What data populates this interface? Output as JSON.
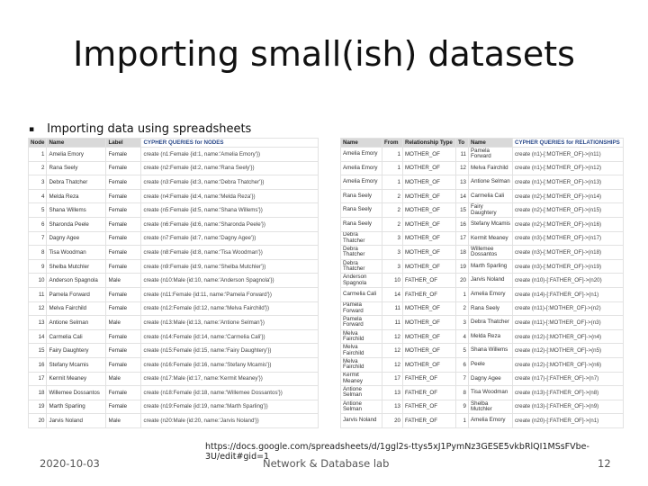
{
  "slide": {
    "title": "Importing small(ish) datasets",
    "bullet": "Importing data using spreadsheets",
    "url": "https://docs.google.com/spreadsheets/d/1ggl2s-ttys5xJ1PymNz3GESE5vkbRlQI1MSsFVbe-3U/edit#gid=1",
    "footer": {
      "date": "2020-10-03",
      "org": "Network & Database lab",
      "page": "12"
    }
  },
  "nodes_sheet": {
    "headers": [
      "Node",
      "Name",
      "Label",
      "CYPHER QUERIES for NODES"
    ],
    "rows": [
      [
        "1",
        "Amelia Emory",
        "Female",
        "create (n1:Female {id:1, name:'Amelia Emory'})"
      ],
      [
        "2",
        "Rana Seely",
        "Female",
        "create (n2:Female {id:2, name:'Rana Seely'})"
      ],
      [
        "3",
        "Debra Thatcher",
        "Female",
        "create (n3:Female {id:3, name:'Debra Thatcher'})"
      ],
      [
        "4",
        "Melda Reza",
        "Female",
        "create (n4:Female {id:4, name:'Melda Reza'})"
      ],
      [
        "5",
        "Shana Willems",
        "Female",
        "create (n5:Female {id:5, name:'Shana Willems'})"
      ],
      [
        "6",
        "Sharonda Peele",
        "Female",
        "create (n6:Female {id:6, name:'Sharonda Peele'})"
      ],
      [
        "7",
        "Dagny Agee",
        "Female",
        "create (n7:Female {id:7, name:'Dagny Agee'})"
      ],
      [
        "8",
        "Tisa Woodman",
        "Female",
        "create (n8:Female {id:8, name:'Tisa Woodman'})"
      ],
      [
        "9",
        "Shelba Mutchler",
        "Female",
        "create (n9:Female {id:9, name:'Shelba Mutchler'})"
      ],
      [
        "10",
        "Anderson Spagnola",
        "Male",
        "create (n10:Male {id:10, name:'Anderson Spagnola'})"
      ],
      [
        "11",
        "Pamela Forward",
        "Female",
        "create (n11:Female {id:11, name:'Pamela Forward'})"
      ],
      [
        "12",
        "Melva Fairchild",
        "Female",
        "create (n12:Female {id:12, name:'Melva Fairchild'})"
      ],
      [
        "13",
        "Antione Selman",
        "Male",
        "create (n13:Male {id:13, name:'Antione Selman'})"
      ],
      [
        "14",
        "Carmelia Cali",
        "Female",
        "create (n14:Female {id:14, name:'Carmelia Cali'})"
      ],
      [
        "15",
        "Fairy Daughtery",
        "Female",
        "create (n15:Female {id:15, name:'Fairy Daughtery'})"
      ],
      [
        "16",
        "Stefany Mcamis",
        "Female",
        "create (n16:Female {id:16, name:'Stefany Mcamis'})"
      ],
      [
        "17",
        "Kermit Meaney",
        "Male",
        "create (n17:Male {id:17, name:'Kermit Meaney'})"
      ],
      [
        "18",
        "Willemee Dossantos",
        "Female",
        "create (n18:Female {id:18, name:'Willemee Dossantos'})"
      ],
      [
        "19",
        "Marth Sparling",
        "Female",
        "create (n19:Female {id:19, name:'Marth Sparling'})"
      ],
      [
        "20",
        "Jarvis Noland",
        "Male",
        "create (n20:Male {id:20, name:'Jarvis Noland'})"
      ]
    ]
  },
  "relationships_sheet": {
    "headers": [
      "Name",
      "From",
      "Relationship Type",
      "To",
      "Name",
      "CYPHER QUERIES for RELATIONSHIPS"
    ],
    "rows": [
      [
        "Amelia Emory",
        "1",
        "MOTHER_OF",
        "11",
        "Pamela Forward",
        "create (n1)-[:MOTHER_OF]->(n11)"
      ],
      [
        "Amelia Emory",
        "1",
        "MOTHER_OF",
        "12",
        "Melva Fairchild",
        "create (n1)-[:MOTHER_OF]->(n12)"
      ],
      [
        "Amelia Emory",
        "1",
        "MOTHER_OF",
        "13",
        "Antione Selman",
        "create (n1)-[:MOTHER_OF]->(n13)"
      ],
      [
        "Rana Seely",
        "2",
        "MOTHER_OF",
        "14",
        "Carmelia Cali",
        "create (n2)-[:MOTHER_OF]->(n14)"
      ],
      [
        "Rana Seely",
        "2",
        "MOTHER_OF",
        "15",
        "Fairy Daughtery",
        "create (n2)-[:MOTHER_OF]->(n15)"
      ],
      [
        "Rana Seely",
        "2",
        "MOTHER_OF",
        "16",
        "Stefany Mcamis",
        "create (n2)-[:MOTHER_OF]->(n16)"
      ],
      [
        "Debra Thatcher",
        "3",
        "MOTHER_OF",
        "17",
        "Kermit Meaney",
        "create (n3)-[:MOTHER_OF]->(n17)"
      ],
      [
        "Debra Thatcher",
        "3",
        "MOTHER_OF",
        "18",
        "Willemee Dossantos",
        "create (n3)-[:MOTHER_OF]->(n18)"
      ],
      [
        "Debra Thatcher",
        "3",
        "MOTHER_OF",
        "19",
        "Marth Sparling",
        "create (n3)-[:MOTHER_OF]->(n19)"
      ],
      [
        "Anderson Spagnola",
        "10",
        "FATHER_OF",
        "20",
        "Jarvis Noland",
        "create (n10)-[:FATHER_OF]->(n20)"
      ],
      [
        "Carmelia Cali",
        "14",
        "FATHER_OF",
        "1",
        "Amelia Emory",
        "create (n14)-[:FATHER_OF]->(n1)"
      ],
      [
        "Pamela Forward",
        "11",
        "MOTHER_OF",
        "2",
        "Rana Seely",
        "create (n11)-[:MOTHER_OF]->(n2)"
      ],
      [
        "Pamela Forward",
        "11",
        "MOTHER_OF",
        "3",
        "Debra Thatcher",
        "create (n11)-[:MOTHER_OF]->(n3)"
      ],
      [
        "Melva Fairchild",
        "12",
        "MOTHER_OF",
        "4",
        "Melda Reza",
        "create (n12)-[:MOTHER_OF]->(n4)"
      ],
      [
        "Melva Fairchild",
        "12",
        "MOTHER_OF",
        "5",
        "Shana Willems",
        "create (n12)-[:MOTHER_OF]->(n5)"
      ],
      [
        "Melva Fairchild",
        "12",
        "MOTHER_OF",
        "6",
        "Peele",
        "create (n12)-[:MOTHER_OF]->(n6)"
      ],
      [
        "Kermit Meaney",
        "17",
        "FATHER_OF",
        "7",
        "Dagny Agee",
        "create (n17)-[:FATHER_OF]->(n7)"
      ],
      [
        "Antione Selman",
        "13",
        "FATHER_OF",
        "8",
        "Tisa Woodman",
        "create (n13)-[:FATHER_OF]->(n8)"
      ],
      [
        "Antione Selman",
        "13",
        "FATHER_OF",
        "9",
        "Shelba Mutchler",
        "create (n13)-[:FATHER_OF]->(n9)"
      ],
      [
        "Jarvis Noland",
        "20",
        "FATHER_OF",
        "1",
        "Amelia Emory",
        "create (n20)-[:FATHER_OF]->(n1)"
      ]
    ]
  }
}
